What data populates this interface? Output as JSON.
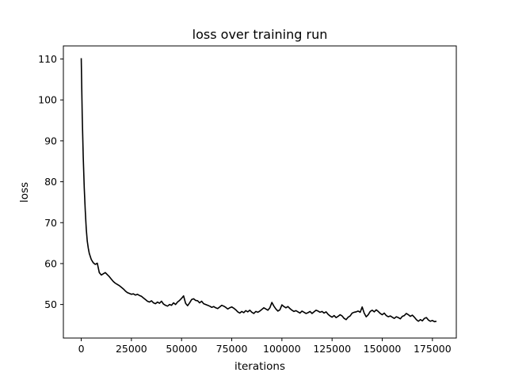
{
  "chart_data": {
    "type": "line",
    "title": "loss over training run",
    "xlabel": "iterations",
    "ylabel": "loss",
    "xlim": [
      -8900,
      186900
    ],
    "ylim": [
      41.8,
      113.2
    ],
    "xticks": [
      0,
      25000,
      50000,
      75000,
      100000,
      125000,
      150000,
      175000
    ],
    "yticks": [
      50,
      60,
      70,
      80,
      90,
      100,
      110
    ],
    "grid": false,
    "line_color": "#000000",
    "series": [
      {
        "name": "loss",
        "x": [
          0,
          500,
          1000,
          1500,
          2000,
          2500,
          3000,
          3500,
          4000,
          5000,
          6000,
          7000,
          8000,
          9000,
          10000,
          11000,
          12000,
          13000,
          14000,
          15000,
          16000,
          17000,
          18000,
          19000,
          20000,
          21000,
          22000,
          23000,
          24000,
          25000,
          26000,
          27000,
          28000,
          29000,
          30000,
          31000,
          32000,
          33000,
          34000,
          35000,
          36000,
          37000,
          38000,
          39000,
          40000,
          41000,
          42000,
          43000,
          44000,
          45000,
          46000,
          47000,
          48000,
          49000,
          50000,
          51000,
          52000,
          53000,
          54000,
          55000,
          56000,
          57000,
          58000,
          59000,
          60000,
          61000,
          62000,
          63000,
          64000,
          65000,
          66000,
          67000,
          68000,
          69000,
          70000,
          71000,
          72000,
          73000,
          74000,
          75000,
          76000,
          77000,
          78000,
          79000,
          80000,
          81000,
          82000,
          83000,
          84000,
          85000,
          86000,
          87000,
          88000,
          89000,
          90000,
          91000,
          92000,
          93000,
          94000,
          95000,
          96000,
          97000,
          98000,
          99000,
          100000,
          101000,
          102000,
          103000,
          104000,
          105000,
          106000,
          107000,
          108000,
          109000,
          110000,
          111000,
          112000,
          113000,
          114000,
          115000,
          116000,
          117000,
          118000,
          119000,
          120000,
          121000,
          122000,
          123000,
          124000,
          125000,
          126000,
          127000,
          128000,
          129000,
          130000,
          131000,
          132000,
          133000,
          134000,
          135000,
          136000,
          137000,
          138000,
          139000,
          140000,
          141000,
          142000,
          143000,
          144000,
          145000,
          146000,
          147000,
          148000,
          149000,
          150000,
          151000,
          152000,
          153000,
          154000,
          155000,
          156000,
          157000,
          158000,
          159000,
          160000,
          161000,
          162000,
          163000,
          164000,
          165000,
          166000,
          167000,
          168000,
          169000,
          170000,
          171000,
          172000,
          173000,
          174000,
          175000,
          176000,
          177000
        ],
        "values": [
          110.2,
          96.0,
          86.0,
          78.5,
          73.0,
          68.5,
          65.5,
          63.8,
          62.5,
          61.0,
          60.2,
          59.8,
          60.1,
          57.8,
          57.2,
          57.5,
          57.8,
          57.3,
          56.8,
          56.2,
          55.6,
          55.2,
          54.9,
          54.6,
          54.2,
          53.8,
          53.3,
          52.9,
          52.7,
          52.5,
          52.6,
          52.3,
          52.5,
          52.2,
          52.0,
          51.6,
          51.2,
          50.8,
          50.6,
          50.9,
          50.4,
          50.2,
          50.6,
          50.3,
          50.8,
          50.1,
          49.8,
          49.6,
          50.0,
          49.8,
          50.4,
          50.0,
          50.6,
          51.0,
          51.5,
          52.1,
          50.3,
          49.7,
          50.4,
          51.2,
          51.4,
          51.0,
          50.9,
          50.4,
          50.8,
          50.2,
          50.0,
          49.8,
          49.6,
          49.3,
          49.5,
          49.2,
          49.0,
          49.4,
          49.8,
          49.6,
          49.3,
          48.9,
          49.2,
          49.4,
          49.1,
          48.7,
          48.2,
          47.9,
          48.3,
          48.0,
          48.5,
          48.2,
          48.6,
          48.1,
          47.8,
          48.3,
          48.1,
          48.4,
          48.8,
          49.2,
          48.9,
          48.6,
          49.2,
          50.5,
          49.6,
          48.9,
          48.4,
          48.7,
          49.9,
          49.5,
          49.2,
          49.5,
          49.0,
          48.6,
          48.3,
          48.5,
          48.2,
          47.9,
          48.4,
          48.1,
          47.8,
          48.0,
          48.3,
          47.8,
          48.2,
          48.6,
          48.4,
          48.1,
          48.3,
          47.9,
          48.2,
          47.6,
          47.2,
          46.9,
          47.3,
          46.8,
          47.1,
          47.5,
          47.2,
          46.6,
          46.3,
          46.9,
          47.2,
          47.9,
          48.1,
          48.2,
          48.4,
          48.1,
          49.4,
          47.9,
          47.0,
          47.5,
          48.3,
          48.6,
          48.2,
          48.7,
          48.3,
          47.8,
          47.5,
          47.9,
          47.3,
          47.0,
          47.2,
          46.9,
          46.6,
          47.0,
          46.8,
          46.5,
          47.1,
          47.3,
          47.8,
          47.5,
          47.1,
          47.4,
          46.9,
          46.3,
          45.9,
          46.3,
          46.0,
          46.6,
          46.8,
          46.2,
          45.9,
          46.1,
          45.8,
          45.9
        ]
      }
    ]
  }
}
